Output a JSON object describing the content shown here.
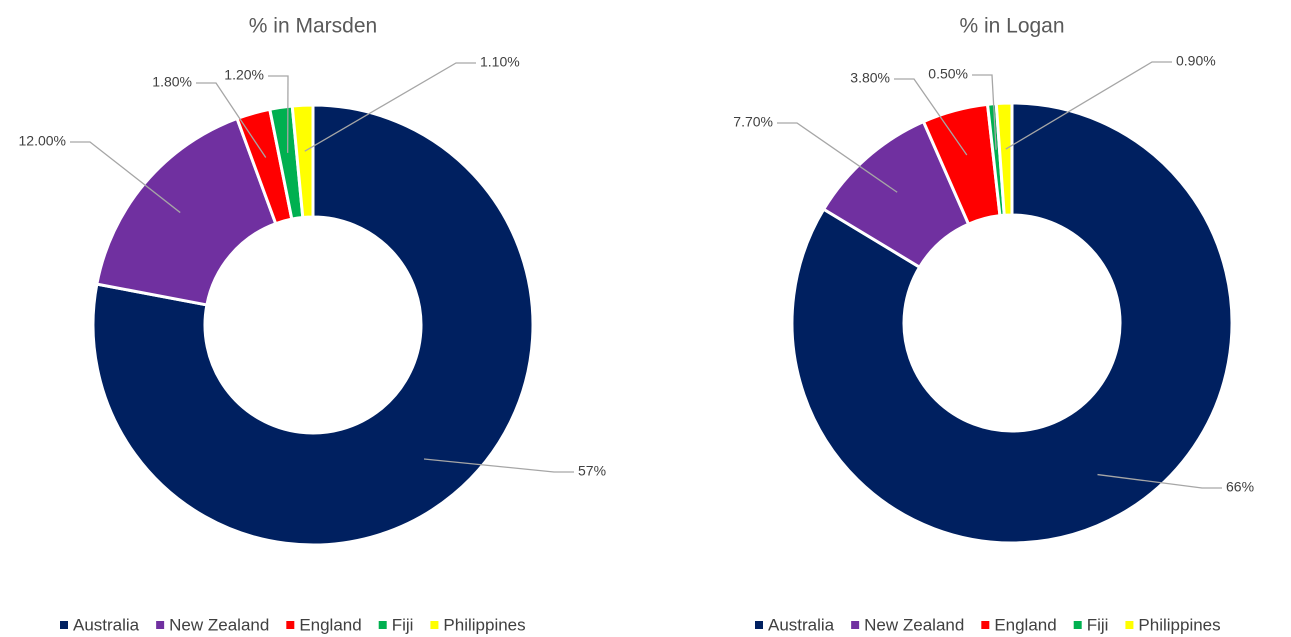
{
  "chart_data": [
    {
      "type": "donut",
      "title": "% in Marsden",
      "categories": [
        "Australia",
        "New Zealand",
        "England",
        "Fiji",
        "Philippines"
      ],
      "values": [
        57,
        12,
        1.8,
        1.2,
        1.1
      ],
      "value_labels": [
        "57%",
        "12.00%",
        "1.80%",
        "1.20%",
        "1.10%"
      ],
      "colors": [
        "#002060",
        "#7030a0",
        "#ff0000",
        "#00b050",
        "#ffff00"
      ],
      "legend": "bottom"
    },
    {
      "type": "donut",
      "title": "% in Logan",
      "categories": [
        "Australia",
        "New Zealand",
        "England",
        "Fiji",
        "Philippines"
      ],
      "values": [
        66,
        7.7,
        3.8,
        0.5,
        0.9
      ],
      "value_labels": [
        "66%",
        "7.70%",
        "3.80%",
        "0.50%",
        "0.90%"
      ],
      "colors": [
        "#002060",
        "#7030a0",
        "#ff0000",
        "#00b050",
        "#ffff00"
      ],
      "legend": "bottom"
    }
  ]
}
